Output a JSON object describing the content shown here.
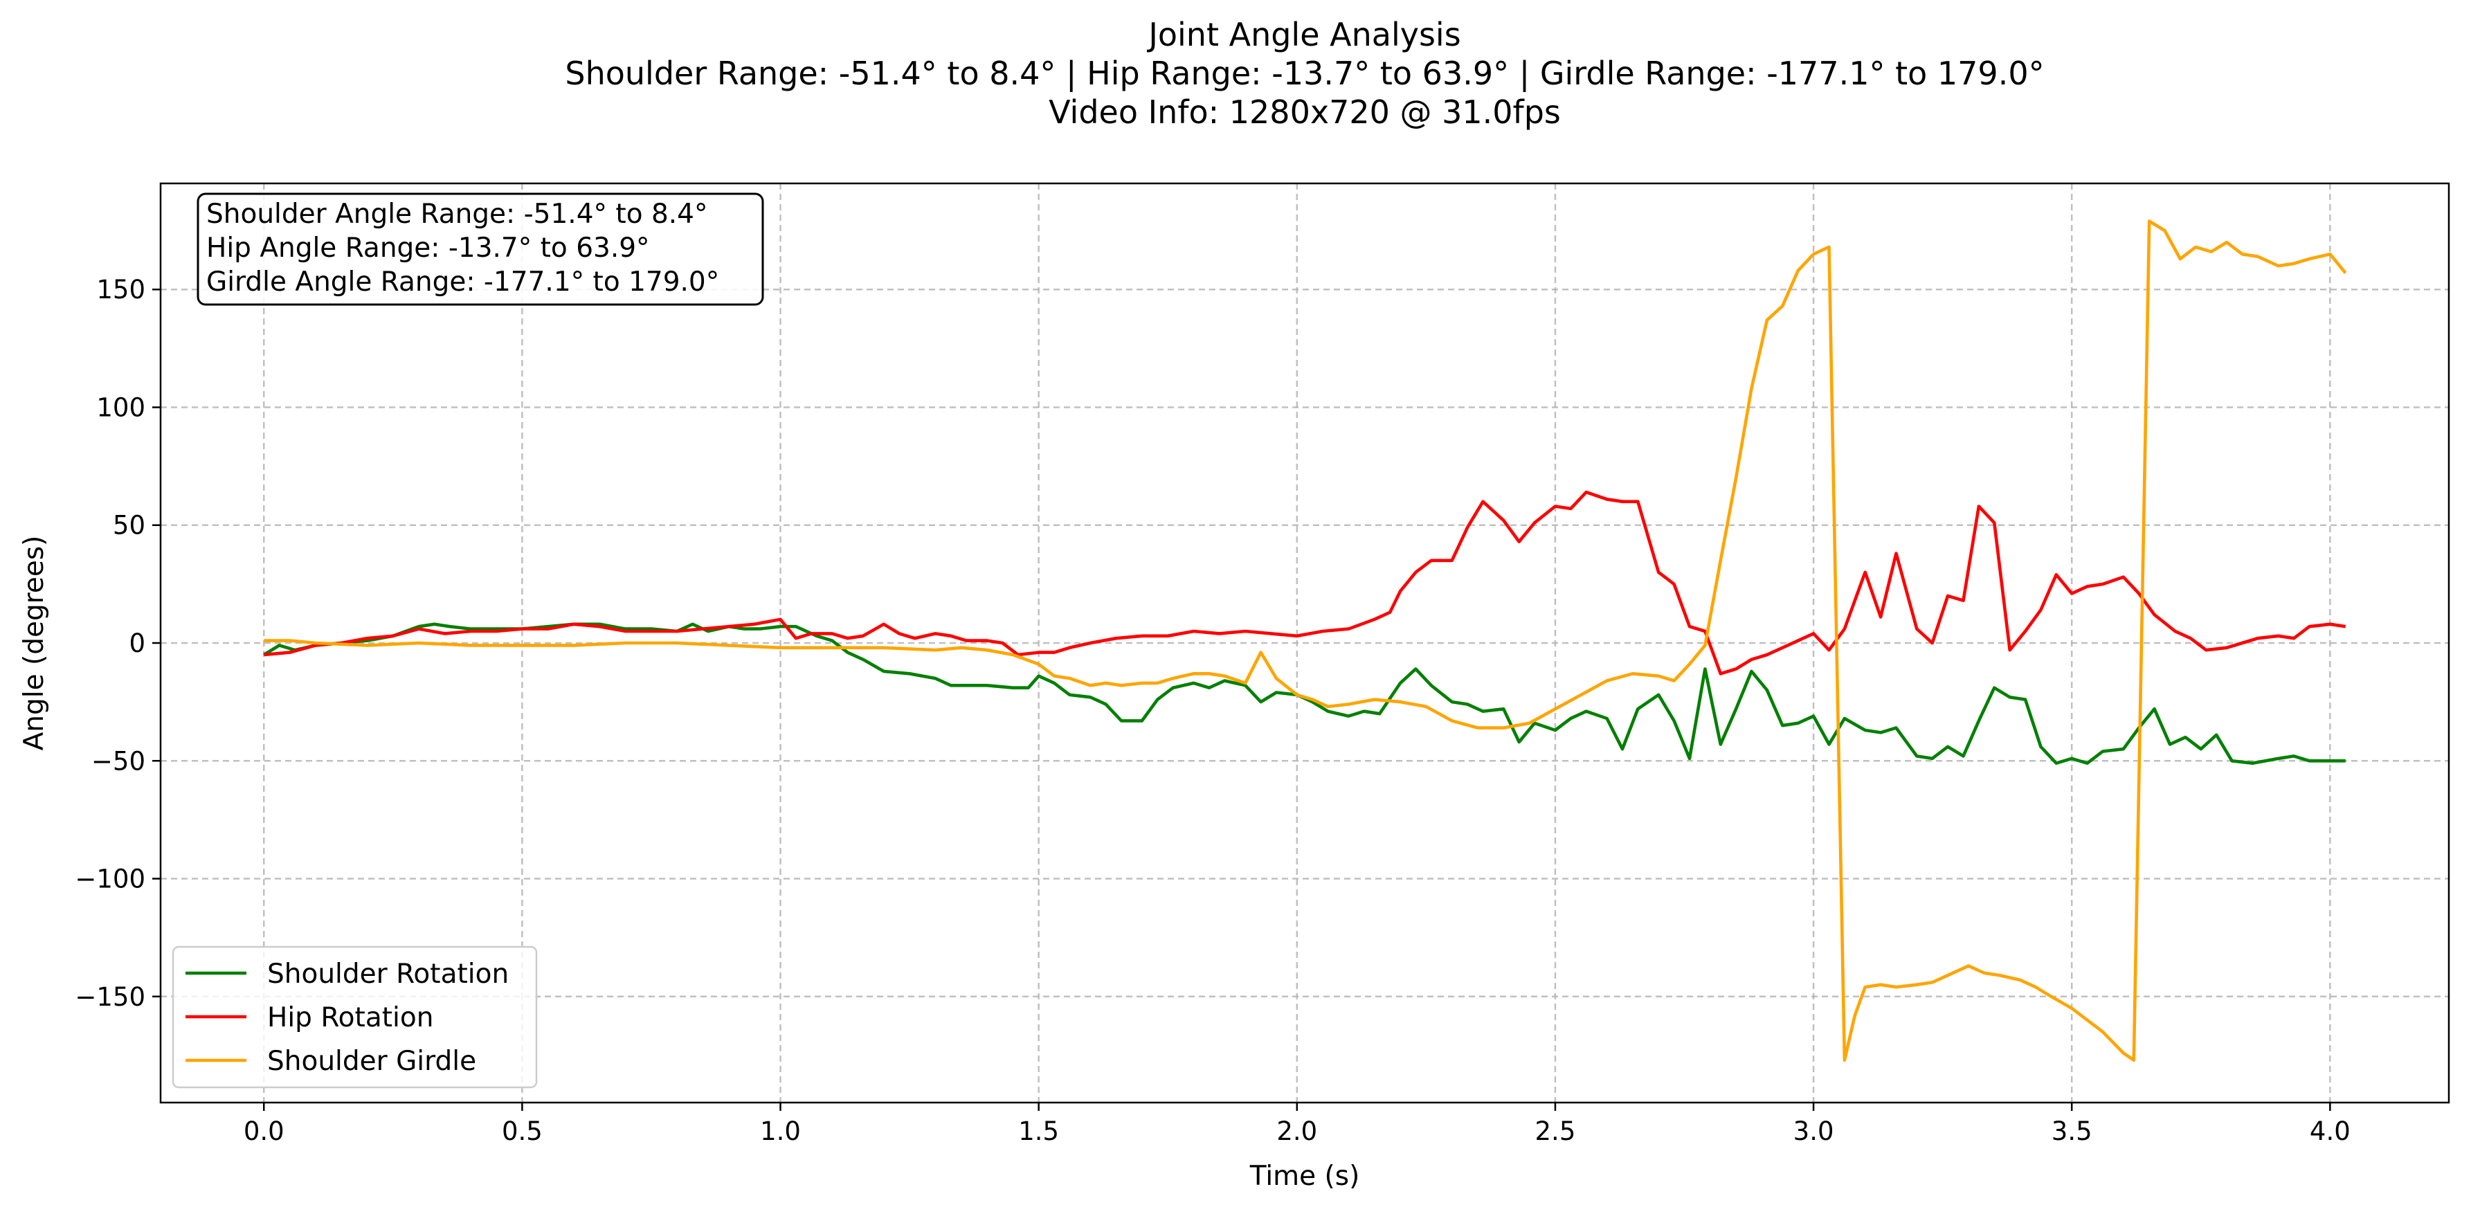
{
  "chart_data": {
    "type": "line",
    "title_lines": [
      "Joint Angle Analysis",
      "Shoulder Range: -51.4° to 8.4° | Hip Range: -13.7° to 63.9° | Girdle Range: -177.1° to 179.0°",
      "Video Info: 1280x720 @ 31.0fps"
    ],
    "xlabel": "Time (s)",
    "ylabel": "Angle (degrees)",
    "xlim": [
      -0.2,
      4.23
    ],
    "ylim": [
      -195,
      195
    ],
    "xticks": [
      0.0,
      0.5,
      1.0,
      1.5,
      2.0,
      2.5,
      3.0,
      3.5,
      4.0
    ],
    "xtick_labels": [
      "0.0",
      "0.5",
      "1.0",
      "1.5",
      "2.0",
      "2.5",
      "3.0",
      "3.5",
      "4.0"
    ],
    "yticks": [
      -150,
      -100,
      -50,
      0,
      50,
      100,
      150
    ],
    "ytick_labels": [
      "−150",
      "−100",
      "−50",
      "0",
      "50",
      "100",
      "150"
    ],
    "grid": true,
    "legend_position": "lower-left",
    "annotation": {
      "position": "upper-left",
      "lines": [
        "Shoulder Angle Range: -51.4° to 8.4°",
        "Hip Angle Range: -13.7° to 63.9°",
        "Girdle Angle Range: -177.1° to 179.0°"
      ]
    },
    "series": [
      {
        "name": "Shoulder Rotation",
        "color": "#008000",
        "points": [
          [
            0.0,
            -5
          ],
          [
            0.03,
            -1
          ],
          [
            0.06,
            -3
          ],
          [
            0.1,
            -1
          ],
          [
            0.15,
            0
          ],
          [
            0.2,
            1
          ],
          [
            0.25,
            3
          ],
          [
            0.3,
            7
          ],
          [
            0.33,
            8
          ],
          [
            0.36,
            7
          ],
          [
            0.4,
            6
          ],
          [
            0.45,
            6
          ],
          [
            0.5,
            6
          ],
          [
            0.55,
            7
          ],
          [
            0.6,
            8
          ],
          [
            0.65,
            8
          ],
          [
            0.7,
            6
          ],
          [
            0.75,
            6
          ],
          [
            0.8,
            5
          ],
          [
            0.83,
            8
          ],
          [
            0.86,
            5
          ],
          [
            0.9,
            7
          ],
          [
            0.93,
            6
          ],
          [
            0.96,
            6
          ],
          [
            1.0,
            7
          ],
          [
            1.03,
            7
          ],
          [
            1.07,
            3
          ],
          [
            1.1,
            1
          ],
          [
            1.13,
            -4
          ],
          [
            1.16,
            -7
          ],
          [
            1.2,
            -12
          ],
          [
            1.25,
            -13
          ],
          [
            1.3,
            -15
          ],
          [
            1.33,
            -18
          ],
          [
            1.4,
            -18
          ],
          [
            1.45,
            -19
          ],
          [
            1.48,
            -19
          ],
          [
            1.5,
            -14
          ],
          [
            1.53,
            -17
          ],
          [
            1.56,
            -22
          ],
          [
            1.6,
            -23
          ],
          [
            1.63,
            -26
          ],
          [
            1.66,
            -33
          ],
          [
            1.7,
            -33
          ],
          [
            1.73,
            -24
          ],
          [
            1.76,
            -19
          ],
          [
            1.8,
            -17
          ],
          [
            1.83,
            -19
          ],
          [
            1.86,
            -16
          ],
          [
            1.9,
            -18
          ],
          [
            1.93,
            -25
          ],
          [
            1.96,
            -21
          ],
          [
            2.0,
            -22
          ],
          [
            2.03,
            -25
          ],
          [
            2.06,
            -29
          ],
          [
            2.1,
            -31
          ],
          [
            2.13,
            -29
          ],
          [
            2.16,
            -30
          ],
          [
            2.2,
            -17
          ],
          [
            2.23,
            -11
          ],
          [
            2.26,
            -18
          ],
          [
            2.3,
            -25
          ],
          [
            2.33,
            -26
          ],
          [
            2.36,
            -29
          ],
          [
            2.4,
            -28
          ],
          [
            2.43,
            -42
          ],
          [
            2.46,
            -34
          ],
          [
            2.5,
            -37
          ],
          [
            2.53,
            -32
          ],
          [
            2.56,
            -29
          ],
          [
            2.6,
            -32
          ],
          [
            2.63,
            -45
          ],
          [
            2.66,
            -28
          ],
          [
            2.7,
            -22
          ],
          [
            2.73,
            -33
          ],
          [
            2.76,
            -49
          ],
          [
            2.79,
            -11
          ],
          [
            2.82,
            -43
          ],
          [
            2.85,
            -28
          ],
          [
            2.88,
            -12
          ],
          [
            2.91,
            -20
          ],
          [
            2.94,
            -35
          ],
          [
            2.97,
            -34
          ],
          [
            3.0,
            -31
          ],
          [
            3.03,
            -43
          ],
          [
            3.06,
            -32
          ],
          [
            3.1,
            -37
          ],
          [
            3.13,
            -38
          ],
          [
            3.16,
            -36
          ],
          [
            3.2,
            -48
          ],
          [
            3.23,
            -49
          ],
          [
            3.26,
            -44
          ],
          [
            3.29,
            -48
          ],
          [
            3.32,
            -33
          ],
          [
            3.35,
            -19
          ],
          [
            3.38,
            -23
          ],
          [
            3.41,
            -24
          ],
          [
            3.44,
            -44
          ],
          [
            3.47,
            -51
          ],
          [
            3.5,
            -49
          ],
          [
            3.53,
            -51
          ],
          [
            3.56,
            -46
          ],
          [
            3.6,
            -45
          ],
          [
            3.63,
            -36
          ],
          [
            3.66,
            -28
          ],
          [
            3.69,
            -43
          ],
          [
            3.72,
            -40
          ],
          [
            3.75,
            -45
          ],
          [
            3.78,
            -39
          ],
          [
            3.81,
            -50
          ],
          [
            3.85,
            -51
          ],
          [
            3.9,
            -49
          ],
          [
            3.93,
            -48
          ],
          [
            3.96,
            -50
          ],
          [
            4.03,
            -50
          ]
        ]
      },
      {
        "name": "Hip Rotation",
        "color": "#ff0000",
        "points": [
          [
            0.0,
            -5
          ],
          [
            0.05,
            -4
          ],
          [
            0.1,
            -1
          ],
          [
            0.15,
            0
          ],
          [
            0.2,
            2
          ],
          [
            0.25,
            3
          ],
          [
            0.3,
            6
          ],
          [
            0.35,
            4
          ],
          [
            0.4,
            5
          ],
          [
            0.45,
            5
          ],
          [
            0.5,
            6
          ],
          [
            0.55,
            6
          ],
          [
            0.6,
            8
          ],
          [
            0.65,
            7
          ],
          [
            0.7,
            5
          ],
          [
            0.75,
            5
          ],
          [
            0.8,
            5
          ],
          [
            0.85,
            6
          ],
          [
            0.9,
            7
          ],
          [
            0.95,
            8
          ],
          [
            1.0,
            10
          ],
          [
            1.03,
            2
          ],
          [
            1.06,
            4
          ],
          [
            1.1,
            4
          ],
          [
            1.13,
            2
          ],
          [
            1.16,
            3
          ],
          [
            1.2,
            8
          ],
          [
            1.23,
            4
          ],
          [
            1.26,
            2
          ],
          [
            1.3,
            4
          ],
          [
            1.33,
            3
          ],
          [
            1.36,
            1
          ],
          [
            1.4,
            1
          ],
          [
            1.43,
            0
          ],
          [
            1.46,
            -5
          ],
          [
            1.5,
            -4
          ],
          [
            1.53,
            -4
          ],
          [
            1.56,
            -2
          ],
          [
            1.6,
            0
          ],
          [
            1.65,
            2
          ],
          [
            1.7,
            3
          ],
          [
            1.75,
            3
          ],
          [
            1.8,
            5
          ],
          [
            1.85,
            4
          ],
          [
            1.9,
            5
          ],
          [
            1.95,
            4
          ],
          [
            2.0,
            3
          ],
          [
            2.05,
            5
          ],
          [
            2.1,
            6
          ],
          [
            2.15,
            10
          ],
          [
            2.18,
            13
          ],
          [
            2.2,
            22
          ],
          [
            2.23,
            30
          ],
          [
            2.26,
            35
          ],
          [
            2.3,
            35
          ],
          [
            2.33,
            49
          ],
          [
            2.36,
            60
          ],
          [
            2.4,
            52
          ],
          [
            2.43,
            43
          ],
          [
            2.46,
            51
          ],
          [
            2.5,
            58
          ],
          [
            2.53,
            57
          ],
          [
            2.56,
            64
          ],
          [
            2.6,
            61
          ],
          [
            2.63,
            60
          ],
          [
            2.66,
            60
          ],
          [
            2.7,
            30
          ],
          [
            2.73,
            25
          ],
          [
            2.76,
            7
          ],
          [
            2.79,
            5
          ],
          [
            2.82,
            -13
          ],
          [
            2.85,
            -11
          ],
          [
            2.88,
            -7
          ],
          [
            2.91,
            -5
          ],
          [
            2.94,
            -2
          ],
          [
            2.97,
            1
          ],
          [
            3.0,
            4
          ],
          [
            3.03,
            -3
          ],
          [
            3.06,
            6
          ],
          [
            3.1,
            30
          ],
          [
            3.13,
            11
          ],
          [
            3.16,
            38
          ],
          [
            3.2,
            6
          ],
          [
            3.23,
            0
          ],
          [
            3.26,
            20
          ],
          [
            3.29,
            18
          ],
          [
            3.32,
            58
          ],
          [
            3.35,
            51
          ],
          [
            3.38,
            -3
          ],
          [
            3.41,
            5
          ],
          [
            3.44,
            14
          ],
          [
            3.47,
            29
          ],
          [
            3.5,
            21
          ],
          [
            3.53,
            24
          ],
          [
            3.56,
            25
          ],
          [
            3.6,
            28
          ],
          [
            3.63,
            21
          ],
          [
            3.66,
            12
          ],
          [
            3.7,
            5
          ],
          [
            3.73,
            2
          ],
          [
            3.76,
            -3
          ],
          [
            3.8,
            -2
          ],
          [
            3.83,
            0
          ],
          [
            3.86,
            2
          ],
          [
            3.9,
            3
          ],
          [
            3.93,
            2
          ],
          [
            3.96,
            7
          ],
          [
            4.0,
            8
          ],
          [
            4.03,
            7
          ]
        ]
      },
      {
        "name": "Shoulder Girdle",
        "color": "#ffa500",
        "points": [
          [
            0.0,
            1
          ],
          [
            0.05,
            1
          ],
          [
            0.1,
            0
          ],
          [
            0.2,
            -1
          ],
          [
            0.3,
            0
          ],
          [
            0.4,
            -1
          ],
          [
            0.5,
            -1
          ],
          [
            0.6,
            -1
          ],
          [
            0.7,
            0
          ],
          [
            0.8,
            0
          ],
          [
            0.9,
            -1
          ],
          [
            1.0,
            -2
          ],
          [
            1.1,
            -2
          ],
          [
            1.2,
            -2
          ],
          [
            1.3,
            -3
          ],
          [
            1.35,
            -2
          ],
          [
            1.4,
            -3
          ],
          [
            1.45,
            -5
          ],
          [
            1.5,
            -9
          ],
          [
            1.53,
            -14
          ],
          [
            1.56,
            -15
          ],
          [
            1.6,
            -18
          ],
          [
            1.63,
            -17
          ],
          [
            1.66,
            -18
          ],
          [
            1.7,
            -17
          ],
          [
            1.73,
            -17
          ],
          [
            1.76,
            -15
          ],
          [
            1.8,
            -13
          ],
          [
            1.83,
            -13
          ],
          [
            1.86,
            -14
          ],
          [
            1.9,
            -17
          ],
          [
            1.93,
            -4
          ],
          [
            1.96,
            -15
          ],
          [
            2.0,
            -22
          ],
          [
            2.03,
            -24
          ],
          [
            2.06,
            -27
          ],
          [
            2.1,
            -26
          ],
          [
            2.15,
            -24
          ],
          [
            2.2,
            -25
          ],
          [
            2.25,
            -27
          ],
          [
            2.3,
            -33
          ],
          [
            2.35,
            -36
          ],
          [
            2.4,
            -36
          ],
          [
            2.45,
            -34
          ],
          [
            2.5,
            -28
          ],
          [
            2.55,
            -22
          ],
          [
            2.6,
            -16
          ],
          [
            2.65,
            -13
          ],
          [
            2.7,
            -14
          ],
          [
            2.73,
            -16
          ],
          [
            2.76,
            -9
          ],
          [
            2.79,
            -1
          ],
          [
            2.82,
            35
          ],
          [
            2.85,
            70
          ],
          [
            2.88,
            108
          ],
          [
            2.91,
            137
          ],
          [
            2.94,
            143
          ],
          [
            2.97,
            158
          ],
          [
            3.0,
            165
          ],
          [
            3.03,
            168
          ],
          [
            3.06,
            -177
          ],
          [
            3.08,
            -158
          ],
          [
            3.1,
            -146
          ],
          [
            3.13,
            -145
          ],
          [
            3.16,
            -146
          ],
          [
            3.2,
            -145
          ],
          [
            3.23,
            -144
          ],
          [
            3.26,
            -141
          ],
          [
            3.3,
            -137
          ],
          [
            3.33,
            -140
          ],
          [
            3.36,
            -141
          ],
          [
            3.4,
            -143
          ],
          [
            3.43,
            -146
          ],
          [
            3.46,
            -150
          ],
          [
            3.5,
            -155
          ],
          [
            3.53,
            -160
          ],
          [
            3.56,
            -165
          ],
          [
            3.6,
            -174
          ],
          [
            3.62,
            -177
          ],
          [
            3.65,
            179
          ],
          [
            3.68,
            175
          ],
          [
            3.71,
            163
          ],
          [
            3.74,
            168
          ],
          [
            3.77,
            166
          ],
          [
            3.8,
            170
          ],
          [
            3.83,
            165
          ],
          [
            3.86,
            164
          ],
          [
            3.9,
            160
          ],
          [
            3.93,
            161
          ],
          [
            3.96,
            163
          ],
          [
            4.0,
            165
          ],
          [
            4.03,
            157
          ]
        ]
      }
    ]
  }
}
